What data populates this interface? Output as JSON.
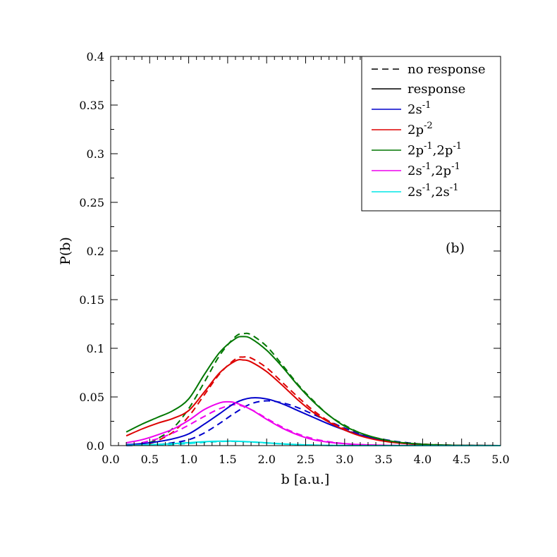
{
  "chart_data": {
    "type": "line",
    "panel_label": "(b)",
    "xlabel": "b [a.u.]",
    "ylabel": "P(b)",
    "xlim": [
      0.0,
      5.0
    ],
    "ylim": [
      0.0,
      0.4
    ],
    "x_ticks": [
      "0.0",
      "0.5",
      "1.0",
      "1.5",
      "2.0",
      "2.5",
      "3.0",
      "3.5",
      "4.0",
      "4.5",
      "5.0"
    ],
    "y_ticks": [
      "0.0",
      "0.05",
      "0.1",
      "0.15",
      "0.2",
      "0.25",
      "0.3",
      "0.35",
      "0.4"
    ],
    "grid": false,
    "legend_position": "top-right",
    "legend": [
      {
        "label": "no response",
        "style": "dashed",
        "color": "#000000"
      },
      {
        "label": "response",
        "style": "solid",
        "color": "#000000"
      },
      {
        "base": "2s",
        "sup": "-1",
        "color": "#0000cc"
      },
      {
        "base": "2p",
        "sup": "-2",
        "color": "#dd0000"
      },
      {
        "base": "2p",
        "sup": "-1",
        "base2": ",2p",
        "sup2": "-1",
        "color": "#007700"
      },
      {
        "base": "2s",
        "sup": "-1",
        "base2": ",2p",
        "sup2": "-1",
        "color": "#ee00ee"
      },
      {
        "base": "2s",
        "sup": "-1",
        "base2": ",2s",
        "sup2": "-1",
        "color": "#00e5e5"
      }
    ],
    "series": [
      {
        "channel": 0,
        "mode": "response",
        "style": "solid",
        "color": "#0000cc",
        "x": [
          0.2,
          0.4,
          0.6,
          0.8,
          1.0,
          1.2,
          1.4,
          1.6,
          1.8,
          2.0,
          2.2,
          2.4,
          2.6,
          2.8,
          3.0,
          3.2,
          3.4,
          3.6,
          3.8,
          4.0,
          4.2,
          4.5,
          5.0
        ],
        "y": [
          0.001,
          0.002,
          0.004,
          0.007,
          0.012,
          0.022,
          0.033,
          0.044,
          0.049,
          0.048,
          0.043,
          0.036,
          0.029,
          0.022,
          0.016,
          0.011,
          0.007,
          0.004,
          0.002,
          0.001,
          0.0005,
          0.0002,
          0.0
        ]
      },
      {
        "channel": 0,
        "mode": "no response",
        "style": "dashed",
        "color": "#0000cc",
        "x": [
          0.2,
          0.4,
          0.6,
          0.8,
          1.0,
          1.2,
          1.4,
          1.6,
          1.8,
          2.0,
          2.2,
          2.4,
          2.6,
          2.8,
          3.0,
          3.2,
          3.4,
          3.6,
          3.8,
          4.0,
          4.2,
          4.5,
          5.0
        ],
        "y": [
          0.0,
          0.0005,
          0.001,
          0.003,
          0.006,
          0.013,
          0.023,
          0.034,
          0.043,
          0.046,
          0.044,
          0.039,
          0.032,
          0.025,
          0.018,
          0.012,
          0.008,
          0.005,
          0.003,
          0.0015,
          0.0007,
          0.0002,
          0.0
        ]
      },
      {
        "channel": 1,
        "mode": "response",
        "style": "solid",
        "color": "#dd0000",
        "x": [
          0.2,
          0.4,
          0.6,
          0.8,
          1.0,
          1.2,
          1.4,
          1.6,
          1.7,
          1.8,
          2.0,
          2.2,
          2.4,
          2.6,
          2.8,
          3.0,
          3.2,
          3.4,
          3.6,
          3.8,
          4.0,
          4.2,
          4.5,
          5.0
        ],
        "y": [
          0.01,
          0.017,
          0.023,
          0.028,
          0.036,
          0.055,
          0.075,
          0.087,
          0.088,
          0.086,
          0.076,
          0.062,
          0.047,
          0.034,
          0.024,
          0.016,
          0.01,
          0.006,
          0.0035,
          0.002,
          0.001,
          0.0005,
          0.0002,
          0.0
        ]
      },
      {
        "channel": 1,
        "mode": "no response",
        "style": "dashed",
        "color": "#dd0000",
        "x": [
          0.5,
          0.6,
          0.8,
          1.0,
          1.2,
          1.4,
          1.6,
          1.7,
          1.8,
          2.0,
          2.2,
          2.4,
          2.6,
          2.8,
          3.0,
          3.2,
          3.4,
          3.6,
          3.8,
          4.0,
          4.2,
          4.5,
          5.0
        ],
        "y": [
          0.002,
          0.005,
          0.014,
          0.03,
          0.052,
          0.074,
          0.089,
          0.091,
          0.09,
          0.08,
          0.065,
          0.05,
          0.036,
          0.025,
          0.017,
          0.011,
          0.007,
          0.004,
          0.0025,
          0.0015,
          0.0008,
          0.0003,
          0.0
        ]
      },
      {
        "channel": 2,
        "mode": "response",
        "style": "solid",
        "color": "#007700",
        "x": [
          0.2,
          0.4,
          0.6,
          0.8,
          1.0,
          1.2,
          1.4,
          1.6,
          1.7,
          1.8,
          2.0,
          2.2,
          2.4,
          2.6,
          2.8,
          3.0,
          3.2,
          3.4,
          3.6,
          3.8,
          4.0,
          4.2,
          4.5,
          5.0
        ],
        "y": [
          0.014,
          0.022,
          0.029,
          0.036,
          0.048,
          0.073,
          0.096,
          0.11,
          0.112,
          0.11,
          0.098,
          0.081,
          0.062,
          0.045,
          0.031,
          0.02,
          0.013,
          0.008,
          0.0045,
          0.0025,
          0.0014,
          0.0007,
          0.0002,
          0.0
        ]
      },
      {
        "channel": 2,
        "mode": "no response",
        "style": "dashed",
        "color": "#007700",
        "x": [
          0.5,
          0.6,
          0.8,
          1.0,
          1.2,
          1.4,
          1.6,
          1.7,
          1.8,
          2.0,
          2.2,
          2.4,
          2.6,
          2.8,
          3.0,
          3.2,
          3.4,
          3.6,
          3.8,
          4.0,
          4.2,
          4.5,
          5.0
        ],
        "y": [
          0.003,
          0.007,
          0.018,
          0.038,
          0.065,
          0.093,
          0.112,
          0.115,
          0.114,
          0.102,
          0.083,
          0.063,
          0.046,
          0.031,
          0.021,
          0.013,
          0.008,
          0.0045,
          0.0025,
          0.0014,
          0.0007,
          0.0002,
          0.0
        ]
      },
      {
        "channel": 3,
        "mode": "response",
        "style": "solid",
        "color": "#ee00ee",
        "x": [
          0.2,
          0.4,
          0.6,
          0.8,
          1.0,
          1.2,
          1.4,
          1.5,
          1.6,
          1.8,
          2.0,
          2.2,
          2.4,
          2.6,
          2.8,
          3.0,
          3.2,
          3.4,
          3.6,
          3.8,
          4.0,
          4.5,
          5.0
        ],
        "y": [
          0.003,
          0.006,
          0.011,
          0.017,
          0.026,
          0.037,
          0.044,
          0.045,
          0.044,
          0.037,
          0.027,
          0.018,
          0.011,
          0.006,
          0.0035,
          0.002,
          0.001,
          0.0005,
          0.0002,
          0.0001,
          0.0,
          0.0,
          0.0
        ]
      },
      {
        "channel": 3,
        "mode": "no response",
        "style": "dashed",
        "color": "#ee00ee",
        "x": [
          0.4,
          0.6,
          0.8,
          1.0,
          1.2,
          1.4,
          1.6,
          1.8,
          2.0,
          2.2,
          2.4,
          2.6,
          2.8,
          3.0,
          3.2,
          3.4,
          3.6,
          3.8,
          4.0,
          4.5,
          5.0
        ],
        "y": [
          0.003,
          0.007,
          0.013,
          0.021,
          0.03,
          0.038,
          0.042,
          0.037,
          0.028,
          0.019,
          0.012,
          0.007,
          0.004,
          0.002,
          0.001,
          0.0005,
          0.0002,
          0.0001,
          0.0,
          0.0,
          0.0
        ]
      },
      {
        "channel": 4,
        "mode": "response",
        "style": "solid",
        "color": "#00e5e5",
        "x": [
          0.2,
          0.4,
          0.6,
          0.8,
          1.0,
          1.2,
          1.4,
          1.5,
          1.6,
          1.8,
          2.0,
          2.2,
          2.4,
          2.6,
          2.8,
          3.0,
          3.5,
          4.0,
          5.0
        ],
        "y": [
          0.0003,
          0.0006,
          0.0012,
          0.002,
          0.003,
          0.004,
          0.0045,
          0.0046,
          0.0045,
          0.0038,
          0.0028,
          0.0018,
          0.001,
          0.0005,
          0.0002,
          0.0001,
          0.0,
          0.0,
          0.0
        ]
      },
      {
        "channel": 4,
        "mode": "no response",
        "style": "dashed",
        "color": "#00e5e5",
        "x": [
          0.6,
          0.8,
          1.0,
          1.2,
          1.4,
          1.5,
          1.6,
          1.8,
          2.0,
          2.2,
          2.4,
          2.6,
          2.8,
          3.0,
          3.5,
          4.0,
          5.0
        ],
        "y": [
          0.0005,
          0.0012,
          0.0022,
          0.0033,
          0.0042,
          0.0044,
          0.0043,
          0.0037,
          0.0027,
          0.0017,
          0.001,
          0.0005,
          0.0002,
          0.0001,
          0.0,
          0.0,
          0.0
        ]
      }
    ]
  }
}
